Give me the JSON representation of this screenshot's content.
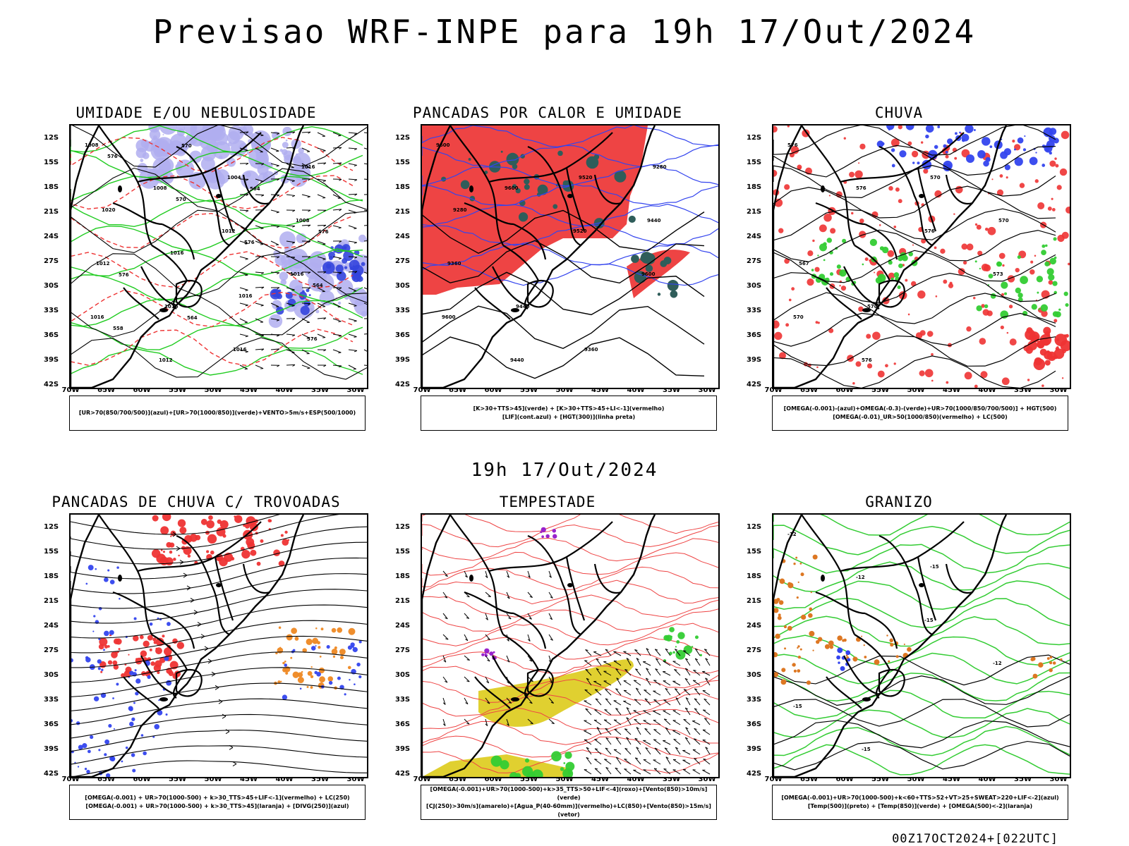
{
  "main_title": "Previsao WRF-INPE  para 19h 17/Out/2024",
  "mid_title": "19h 17/Out/2024",
  "footer": "00Z17OCT2024+[022UTC]",
  "lat_labels": [
    "12S",
    "15S",
    "18S",
    "21S",
    "24S",
    "27S",
    "30S",
    "33S",
    "36S",
    "39S",
    "42S"
  ],
  "lon_labels": [
    "70W",
    "65W",
    "60W",
    "55W",
    "50W",
    "45W",
    "40W",
    "35W",
    "30W"
  ],
  "panels": [
    {
      "title": "UMIDADE E/OU NEBULOSIDADE",
      "legend_lines": [
        "[UR>70(850/700/500)](azul)+[UR>70(1000/850)](verde)+VENTO>5m/s+ESP(500/1000)"
      ],
      "contour_labels": [
        "1008",
        "1008",
        "1012",
        "1016",
        "1016",
        "1012",
        "1004",
        "1008",
        "1012",
        "1016",
        "1016",
        "1016",
        "1020",
        "1016",
        "1016",
        "576",
        "576",
        "570",
        "576",
        "564",
        "558",
        "570",
        "564",
        "576",
        "576",
        "564"
      ]
    },
    {
      "title": "PANCADAS POR CALOR E UMIDADE",
      "legend_lines": [
        "[K>30+TTS>45](verde) + [K>30+TTS>45+LI<-1](vermelho)",
        "[LIF](cont.azul) + [HGT(300)](linha preta)"
      ],
      "contour_labels": [
        "9600",
        "9600",
        "9520",
        "9600",
        "9600",
        "9440",
        "9520",
        "9440",
        "9360",
        "9440",
        "9360",
        "9280",
        "9280"
      ]
    },
    {
      "title": "CHUVA",
      "legend_lines": [
        "[OMEGA(-0.001)-(azul)+OMEGA(-0.3)-(verde)+UR>70(1000/850/700/500)] + HGT(500)",
        "[OMEGA(-0.01)_UR>50(1000/850)(vermelho) + LC(500)"
      ],
      "contour_labels": [
        "576",
        "576",
        "576",
        "573",
        "570",
        "576",
        "570",
        "570",
        "567",
        "570"
      ]
    },
    {
      "title": "PANCADAS DE CHUVA C/ TROVOADAS",
      "legend_lines": [
        "[OMEGA(-0.001) + UR>70(1000-500) + k>30_TTS>45+LIF<-1](vermelho) + LC(250)",
        "[OMEGA(-0.001) + UR>70(1000-500) + k>30_TTS>45](laranja) + [DIVG(250)](azul)"
      ],
      "contour_labels": []
    },
    {
      "title": "TEMPESTADE",
      "legend_lines": [
        "[OMEGA(-0.001)+UR>70(1000-500)+k>35_TTS>50+LIF<-4](roxo)+[Vento(850)>10m/s](verde)",
        "[CJ(250)>30m/s](amarelo)+[Agua_P(40-60mm)](vermelho)+LC(850)+[Vento(850)>15m/s](vetor)"
      ],
      "contour_labels": []
    },
    {
      "title": "GRANIZO",
      "legend_lines": [
        "[OMEGA(-0.001)+UR>70(1000-500)+k<60+TTS>52+VT>25+SWEAT>220+LIF<-2](azul)",
        "[Temp(500)](preto) + [Temp(850)](verde) + [OMEGA(500)<-2](laranja)"
      ],
      "contour_labels": [
        "-12",
        "-12",
        "-15",
        "-12",
        "-15",
        "-15",
        "-15"
      ]
    }
  ]
}
